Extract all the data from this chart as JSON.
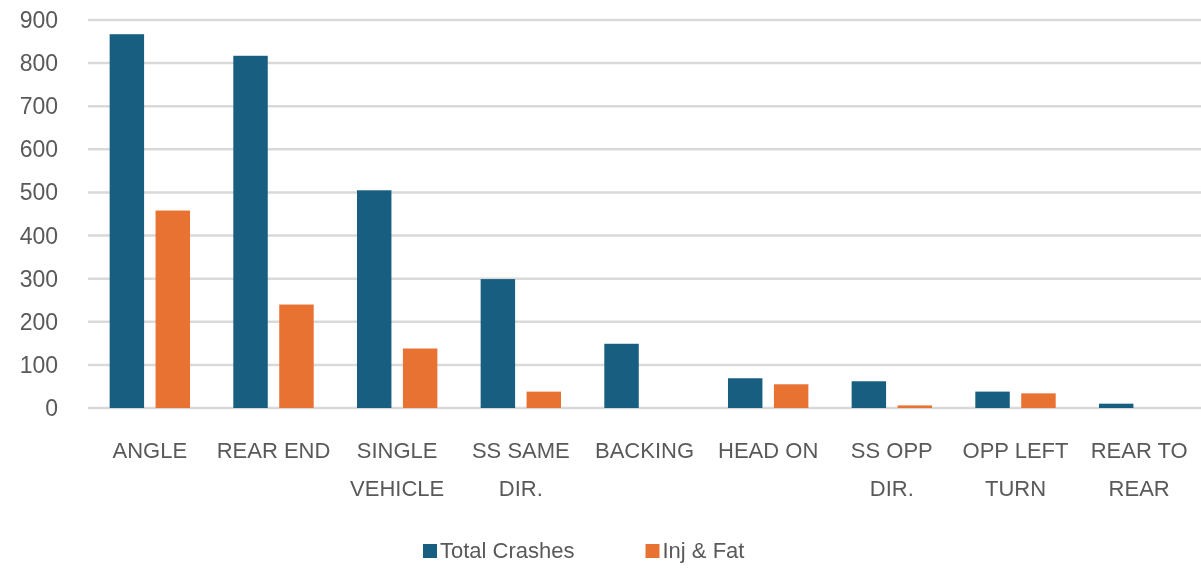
{
  "chart_data": {
    "type": "bar",
    "categories": [
      "ANGLE",
      "REAR END",
      "SINGLE VEHICLE",
      "SS SAME DIR.",
      "BACKING",
      "HEAD ON",
      "SS OPP DIR.",
      "OPP LEFT TURN",
      "REAR TO REAR"
    ],
    "series": [
      {
        "name": "Total Crashes",
        "color": "#175e81",
        "values": [
          867,
          817,
          505,
          299,
          149,
          69,
          62,
          38,
          10
        ]
      },
      {
        "name": "Inj & Fat",
        "color": "#e87232",
        "values": [
          458,
          240,
          138,
          38,
          0,
          55,
          6,
          34,
          0
        ]
      }
    ],
    "ylim": [
      0,
      900
    ],
    "yticks": [
      0,
      100,
      200,
      300,
      400,
      500,
      600,
      700,
      800,
      900
    ],
    "grid": "y",
    "legend": "bottom"
  }
}
